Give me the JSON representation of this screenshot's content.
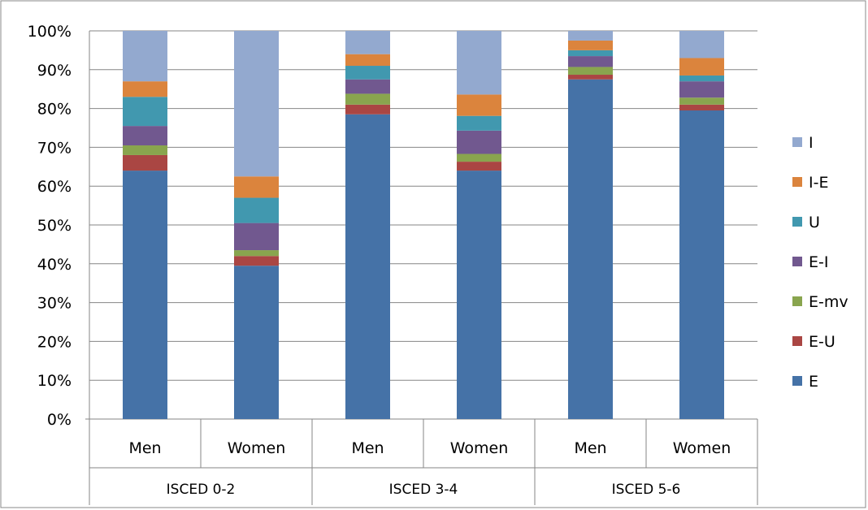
{
  "chart_data": {
    "type": "bar",
    "stacked": true,
    "stack_mode": "percent",
    "groups": [
      {
        "label": "ISCED 0-2",
        "categories": [
          "Men",
          "Women"
        ]
      },
      {
        "label": "ISCED 3-4",
        "categories": [
          "Men",
          "Women"
        ]
      },
      {
        "label": "ISCED 5-6",
        "categories": [
          "Men",
          "Women"
        ]
      }
    ],
    "categories": [
      "Men",
      "Women",
      "Men",
      "Women",
      "Men",
      "Women"
    ],
    "series": [
      {
        "name": "E",
        "color": "#4572A7",
        "values": [
          64.0,
          39.5,
          78.5,
          64.0,
          87.5,
          79.5
        ]
      },
      {
        "name": "E-U",
        "color": "#AA4643",
        "values": [
          4.0,
          2.5,
          2.5,
          2.3,
          1.2,
          1.5
        ]
      },
      {
        "name": "E-mv",
        "color": "#89A54E",
        "values": [
          2.5,
          1.5,
          2.8,
          2.0,
          2.0,
          1.8
        ]
      },
      {
        "name": "E-I",
        "color": "#71588F",
        "values": [
          5.0,
          7.0,
          3.7,
          6.0,
          2.8,
          4.2
        ]
      },
      {
        "name": "U",
        "color": "#4198AF",
        "values": [
          7.5,
          6.5,
          3.5,
          3.8,
          1.5,
          1.5
        ]
      },
      {
        "name": "I-E",
        "color": "#DB843D",
        "values": [
          4.0,
          5.5,
          3.0,
          5.5,
          2.5,
          4.5
        ]
      },
      {
        "name": "I",
        "color": "#93A9CF",
        "values": [
          13.0,
          37.5,
          6.0,
          16.4,
          2.5,
          7.0
        ]
      }
    ],
    "y_ticks": [
      "0%",
      "10%",
      "20%",
      "30%",
      "40%",
      "50%",
      "60%",
      "70%",
      "80%",
      "90%",
      "100%"
    ],
    "ylim": [
      0,
      100
    ],
    "grid": true,
    "legend_position": "right",
    "legend_order": [
      "I",
      "I-E",
      "U",
      "E-I",
      "E-mv",
      "E-U",
      "E"
    ]
  }
}
